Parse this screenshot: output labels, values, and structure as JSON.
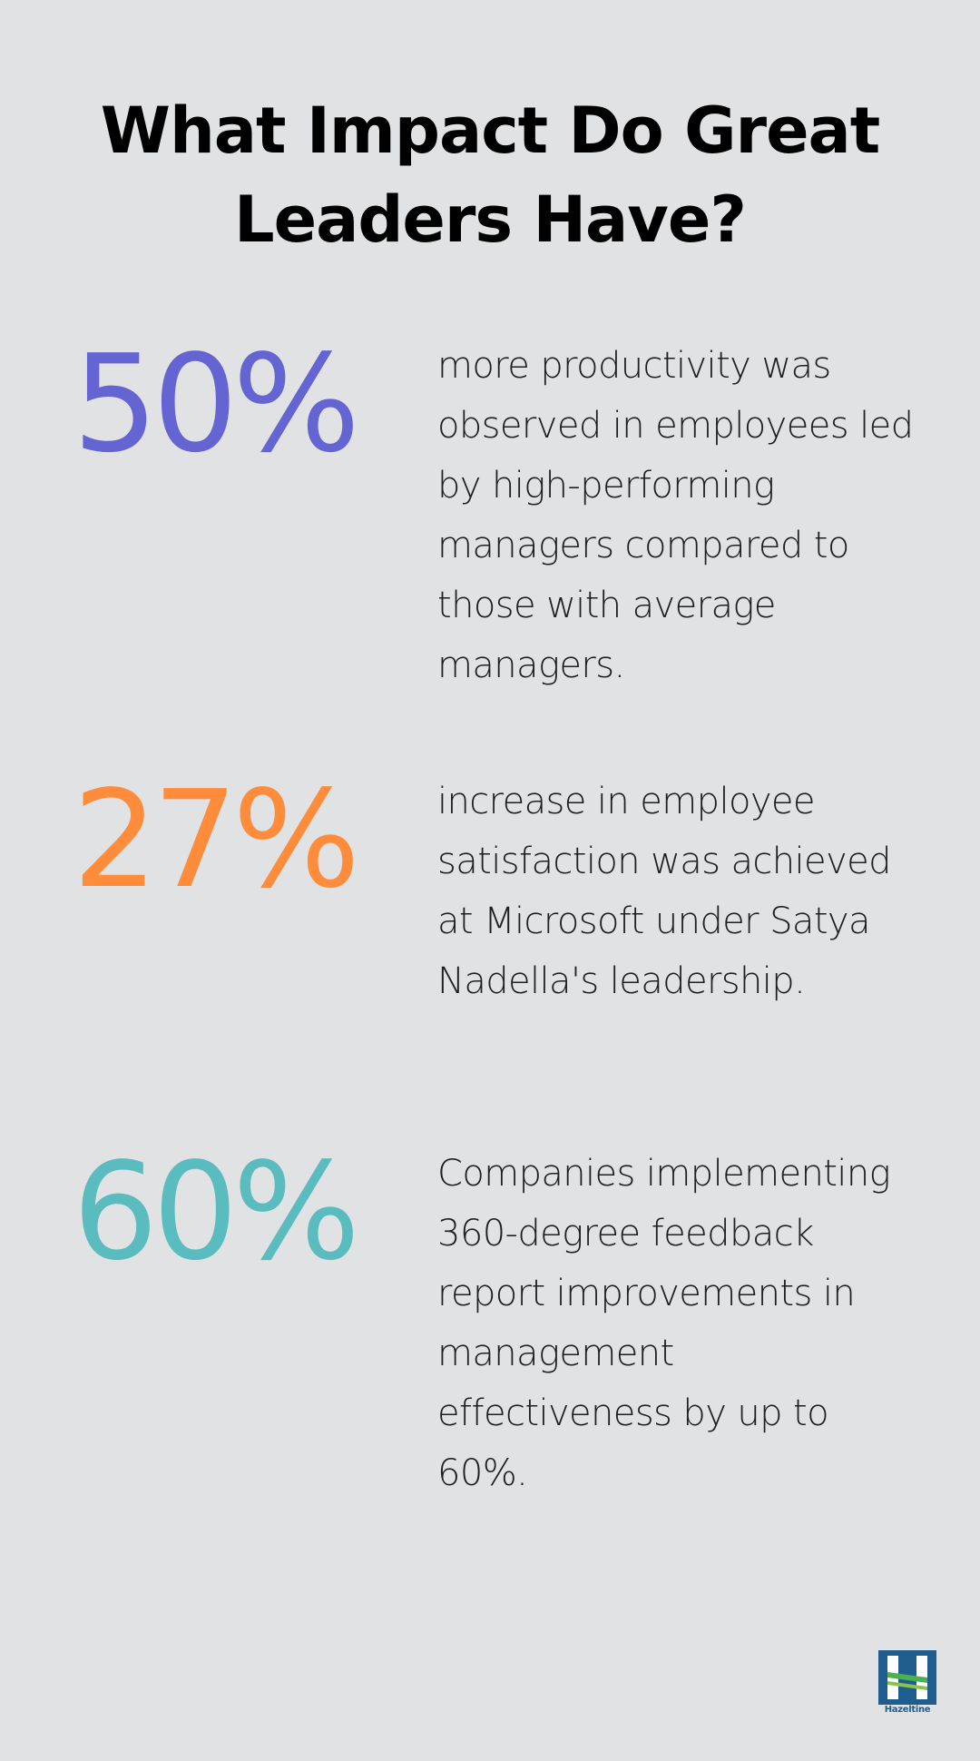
{
  "title": "What Impact Do Great Leaders Have?",
  "stats": [
    {
      "value": "50%",
      "color": "#6464d2",
      "text": "more productivity was observed in employees led by high-performing managers compared to those with average managers."
    },
    {
      "value": "27%",
      "color": "#ff8c3b",
      "text": "increase in employee satisfaction was achieved at Microsoft under Satya Nadella's leadership."
    },
    {
      "value": "60%",
      "color": "#5bbcbf",
      "text": "Companies implementing 360-degree feedback report improvements in management effectiveness by up to 60%."
    }
  ],
  "logo": {
    "name": "Hazeltine",
    "icon": "hazeltine-logo-icon",
    "colors": [
      "#1f5d8f",
      "#4caf50"
    ]
  }
}
